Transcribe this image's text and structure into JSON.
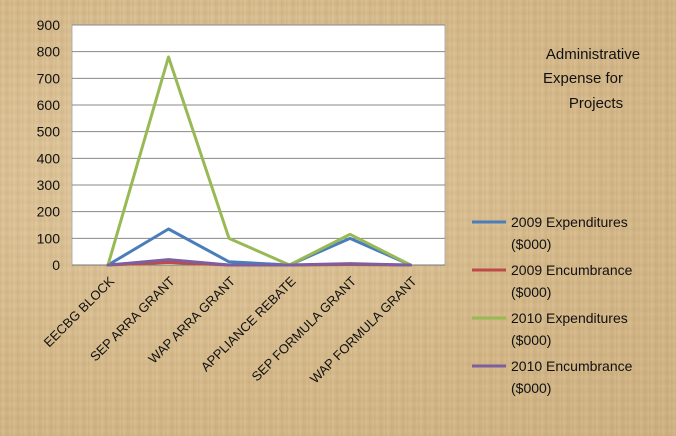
{
  "chart_data": {
    "type": "line",
    "title_lines": [
      "Administrative",
      "Expense for",
      "Projects"
    ],
    "categories": [
      "EECBG BLOCK",
      "SEP ARRA GRANT",
      "WAP ARRA GRANT",
      "APPLIANCE REBATE",
      "SEP FORMULA GRANT",
      "WAP FORMULA GRANT"
    ],
    "ylim": [
      0,
      900
    ],
    "yticks": [
      "0",
      "100",
      "200",
      "300",
      "400",
      "500",
      "600",
      "700",
      "800",
      "900"
    ],
    "grid": true,
    "legend_position": "right",
    "series": [
      {
        "name_lines": [
          "2009 Expenditures",
          "($000)"
        ],
        "color": "#4a7ebb",
        "values": [
          0,
          135,
          12,
          0,
          100,
          0
        ]
      },
      {
        "name_lines": [
          "2009 Encumbrance",
          "($000)"
        ],
        "color": "#be4b48",
        "values": [
          0,
          10,
          0,
          0,
          2,
          0
        ]
      },
      {
        "name_lines": [
          "2010 Expenditures",
          "($000)"
        ],
        "color": "#98b954",
        "values": [
          0,
          780,
          100,
          0,
          115,
          0
        ]
      },
      {
        "name_lines": [
          "2010 Encumbrance",
          "($000)"
        ],
        "color": "#7d5fa0",
        "values": [
          0,
          20,
          0,
          0,
          5,
          0
        ]
      }
    ]
  }
}
